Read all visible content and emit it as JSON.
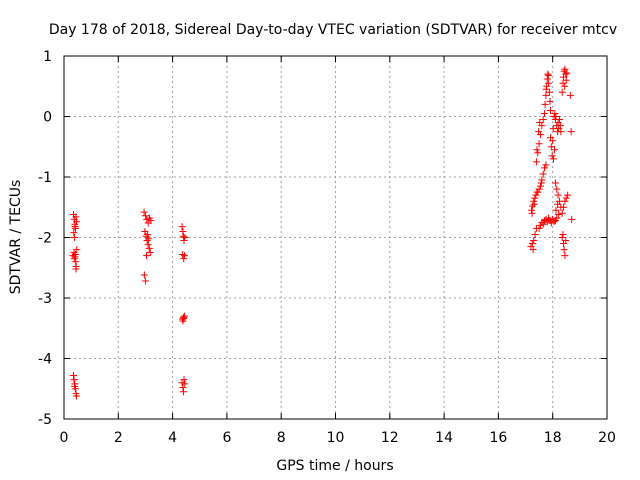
{
  "chart_data": {
    "type": "scatter",
    "title": "Day 178 of 2018, Sidereal Day-to-day VTEC variation (SDTVAR) for receiver mtcv",
    "xlabel": "GPS time / hours",
    "ylabel": "SDTVAR / TECUs",
    "xlim": [
      0,
      20
    ],
    "ylim": [
      -5,
      1
    ],
    "xticks": [
      "0",
      "2",
      "4",
      "6",
      "8",
      "10",
      "12",
      "14",
      "16",
      "18",
      "20"
    ],
    "yticks": [
      "-5",
      "-4",
      "-3",
      "-2",
      "-1",
      "0",
      "1"
    ],
    "grid": true,
    "marker": "+",
    "color": "#ff0000",
    "series": [
      {
        "name": "SDTVAR",
        "points": [
          [
            0.35,
            -1.62
          ],
          [
            0.38,
            -1.7
          ],
          [
            0.4,
            -1.78
          ],
          [
            0.42,
            -1.85
          ],
          [
            0.36,
            -1.92
          ],
          [
            0.39,
            -2.0
          ],
          [
            0.44,
            -1.66
          ],
          [
            0.46,
            -1.74
          ],
          [
            0.41,
            -1.82
          ],
          [
            0.37,
            -2.25
          ],
          [
            0.4,
            -2.32
          ],
          [
            0.43,
            -2.4
          ],
          [
            0.45,
            -2.48
          ],
          [
            0.38,
            -2.35
          ],
          [
            0.42,
            -2.28
          ],
          [
            0.47,
            -2.2
          ],
          [
            0.33,
            -2.3
          ],
          [
            0.44,
            -2.52
          ],
          [
            0.35,
            -4.28
          ],
          [
            0.37,
            -4.35
          ],
          [
            0.4,
            -4.42
          ],
          [
            0.42,
            -4.5
          ],
          [
            0.44,
            -4.58
          ],
          [
            0.46,
            -4.62
          ],
          [
            0.39,
            -4.46
          ],
          [
            2.95,
            -1.58
          ],
          [
            3.0,
            -1.64
          ],
          [
            3.05,
            -1.7
          ],
          [
            3.1,
            -1.76
          ],
          [
            3.15,
            -1.68
          ],
          [
            3.2,
            -1.72
          ],
          [
            2.98,
            -1.9
          ],
          [
            3.02,
            -1.98
          ],
          [
            3.06,
            -2.05
          ],
          [
            3.1,
            -2.12
          ],
          [
            3.14,
            -2.18
          ],
          [
            3.18,
            -2.25
          ],
          [
            3.04,
            -2.3
          ],
          [
            3.12,
            -2.02
          ],
          [
            3.08,
            -1.95
          ],
          [
            2.96,
            -2.62
          ],
          [
            3.0,
            -2.72
          ],
          [
            4.35,
            -1.82
          ],
          [
            4.38,
            -1.9
          ],
          [
            4.4,
            -1.98
          ],
          [
            4.42,
            -2.05
          ],
          [
            4.45,
            -2.0
          ],
          [
            4.37,
            -2.28
          ],
          [
            4.41,
            -2.35
          ],
          [
            4.44,
            -2.3
          ],
          [
            4.36,
            -3.35
          ],
          [
            4.4,
            -3.32
          ],
          [
            4.44,
            -3.3
          ],
          [
            4.38,
            -3.38
          ],
          [
            4.42,
            -3.34
          ],
          [
            4.35,
            -4.4
          ],
          [
            4.38,
            -4.48
          ],
          [
            4.4,
            -4.55
          ],
          [
            4.42,
            -4.35
          ],
          [
            4.45,
            -4.42
          ],
          [
            17.2,
            -2.15
          ],
          [
            17.25,
            -2.1
          ],
          [
            17.3,
            -2.05
          ],
          [
            17.35,
            -1.95
          ],
          [
            17.4,
            -1.85
          ],
          [
            17.28,
            -2.2
          ],
          [
            17.22,
            -1.55
          ],
          [
            17.26,
            -1.48
          ],
          [
            17.3,
            -1.4
          ],
          [
            17.34,
            -1.35
          ],
          [
            17.38,
            -1.3
          ],
          [
            17.42,
            -1.25
          ],
          [
            17.24,
            -1.6
          ],
          [
            17.32,
            -1.45
          ],
          [
            17.4,
            -0.75
          ],
          [
            17.45,
            -0.6
          ],
          [
            17.5,
            -0.45
          ],
          [
            17.55,
            -0.3
          ],
          [
            17.6,
            -0.15
          ],
          [
            17.65,
            -0.05
          ],
          [
            17.42,
            -0.55
          ],
          [
            17.48,
            -0.25
          ],
          [
            17.52,
            -0.1
          ],
          [
            17.45,
            -1.25
          ],
          [
            17.5,
            -1.2
          ],
          [
            17.55,
            -1.15
          ],
          [
            17.6,
            -1.05
          ],
          [
            17.65,
            -0.95
          ],
          [
            17.7,
            -0.85
          ],
          [
            17.75,
            -0.8
          ],
          [
            17.58,
            -1.1
          ],
          [
            17.5,
            -1.85
          ],
          [
            17.55,
            -1.8
          ],
          [
            17.6,
            -1.75
          ],
          [
            17.65,
            -1.78
          ],
          [
            17.7,
            -1.72
          ],
          [
            17.75,
            -1.7
          ],
          [
            17.8,
            -1.74
          ],
          [
            17.85,
            -1.68
          ],
          [
            17.9,
            -1.72
          ],
          [
            17.95,
            -1.76
          ],
          [
            18.0,
            -1.7
          ],
          [
            18.05,
            -1.74
          ],
          [
            18.1,
            -1.72
          ],
          [
            18.15,
            -1.68
          ],
          [
            17.7,
            0.05
          ],
          [
            17.72,
            0.2
          ],
          [
            17.75,
            0.35
          ],
          [
            17.78,
            0.5
          ],
          [
            17.8,
            0.62
          ],
          [
            17.82,
            0.7
          ],
          [
            17.85,
            0.55
          ],
          [
            17.88,
            0.4
          ],
          [
            17.9,
            0.25
          ],
          [
            17.92,
            0.1
          ],
          [
            17.84,
            0.68
          ],
          [
            17.76,
            0.45
          ],
          [
            17.92,
            -0.35
          ],
          [
            17.95,
            -0.5
          ],
          [
            17.98,
            -0.65
          ],
          [
            18.0,
            -0.4
          ],
          [
            18.02,
            -0.2
          ],
          [
            18.05,
            0.0
          ],
          [
            18.08,
            0.05
          ],
          [
            18.1,
            -0.05
          ],
          [
            18.12,
            0.0
          ],
          [
            18.15,
            -0.15
          ],
          [
            18.18,
            -0.25
          ],
          [
            18.2,
            -0.1
          ],
          [
            18.22,
            -0.2
          ],
          [
            18.25,
            -0.05
          ],
          [
            18.28,
            -0.15
          ],
          [
            18.3,
            -0.25
          ],
          [
            18.03,
            -0.7
          ],
          [
            18.07,
            -0.55
          ],
          [
            18.1,
            -1.1
          ],
          [
            18.15,
            -1.2
          ],
          [
            18.2,
            -1.3
          ],
          [
            18.25,
            -1.4
          ],
          [
            18.3,
            -1.5
          ],
          [
            18.35,
            -1.6
          ],
          [
            18.4,
            -1.5
          ],
          [
            18.45,
            -1.4
          ],
          [
            18.5,
            -1.35
          ],
          [
            18.55,
            -1.3
          ],
          [
            18.12,
            -1.55
          ],
          [
            18.18,
            -1.45
          ],
          [
            18.22,
            -1.62
          ],
          [
            18.35,
            0.4
          ],
          [
            18.38,
            0.55
          ],
          [
            18.4,
            0.65
          ],
          [
            18.42,
            0.75
          ],
          [
            18.45,
            0.78
          ],
          [
            18.48,
            0.7
          ],
          [
            18.5,
            0.6
          ],
          [
            18.44,
            0.5
          ],
          [
            18.52,
            0.72
          ],
          [
            18.35,
            -2.0
          ],
          [
            18.4,
            -2.1
          ],
          [
            18.42,
            -2.2
          ],
          [
            18.45,
            -2.3
          ],
          [
            18.48,
            -2.05
          ],
          [
            18.38,
            -1.95
          ],
          [
            18.65,
            0.35
          ],
          [
            18.68,
            -0.25
          ],
          [
            18.7,
            -1.7
          ]
        ]
      }
    ]
  }
}
